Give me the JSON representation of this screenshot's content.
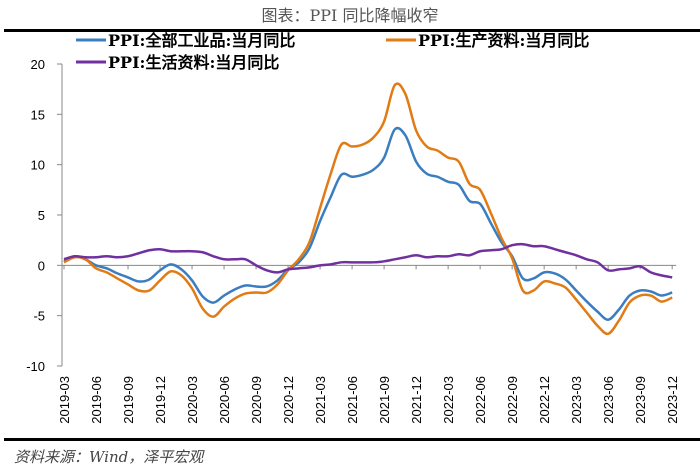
{
  "title": "图表：PPI 同比降幅收窄",
  "source": "资料来源：Wind，泽平宏观",
  "chart_data": {
    "type": "line",
    "title": "图表：PPI 同比降幅收窄",
    "ylim": [
      -10,
      20
    ],
    "yticks": [
      20,
      15,
      10,
      5,
      0,
      -5,
      -10
    ],
    "x_start": "2019-03",
    "xticks": [
      "2019-03",
      "2019-06",
      "2019-09",
      "2019-12",
      "2020-03",
      "2020-06",
      "2020-09",
      "2020-12",
      "2021-03",
      "2021-06",
      "2021-09",
      "2021-12",
      "2022-03",
      "2022-06",
      "2022-09",
      "2022-12",
      "2023-03",
      "2023-06",
      "2023-09",
      "2023-12"
    ],
    "grid": false,
    "legend_position": "top",
    "series": [
      {
        "name": "PPI:全部工业品:当月同比",
        "color": "#3A7DC0",
        "values": [
          0.4,
          0.9,
          0.6,
          0.0,
          -0.3,
          -0.8,
          -1.2,
          -1.6,
          -1.4,
          -0.5,
          0.1,
          -0.4,
          -1.5,
          -3.1,
          -3.7,
          -3.0,
          -2.4,
          -2.0,
          -2.1,
          -2.1,
          -1.5,
          -0.4,
          0.3,
          1.7,
          4.4,
          6.8,
          9.0,
          8.8,
          9.0,
          9.5,
          10.7,
          13.5,
          12.9,
          10.3,
          9.1,
          8.8,
          8.3,
          8.0,
          6.4,
          6.1,
          4.2,
          2.3,
          0.9,
          -1.3,
          -1.3,
          -0.7,
          -0.8,
          -1.4,
          -2.5,
          -3.6,
          -4.6,
          -5.4,
          -4.4,
          -3.0,
          -2.5,
          -2.6,
          -3.0,
          -2.7
        ]
      },
      {
        "name": "PPI:生产资料:当月同比",
        "color": "#E07B15",
        "values": [
          0.3,
          0.8,
          0.6,
          -0.3,
          -0.7,
          -1.3,
          -1.9,
          -2.5,
          -2.5,
          -1.5,
          -0.6,
          -1.0,
          -2.3,
          -4.3,
          -5.1,
          -4.1,
          -3.3,
          -2.8,
          -2.7,
          -2.7,
          -1.9,
          -0.5,
          0.6,
          2.3,
          5.7,
          9.1,
          12.0,
          11.8,
          12.0,
          12.7,
          14.3,
          17.9,
          17.0,
          13.4,
          11.8,
          11.4,
          10.7,
          10.3,
          8.1,
          7.5,
          5.2,
          2.7,
          0.7,
          -2.5,
          -2.5,
          -1.6,
          -1.8,
          -2.2,
          -3.4,
          -4.7,
          -6.0,
          -6.8,
          -5.5,
          -3.7,
          -3.0,
          -3.0,
          -3.6,
          -3.2
        ]
      },
      {
        "name": "PPI:生活资料:当月同比",
        "color": "#7030A0",
        "values": [
          0.6,
          0.9,
          0.8,
          0.8,
          0.9,
          0.8,
          0.9,
          1.2,
          1.5,
          1.6,
          1.4,
          1.4,
          1.4,
          1.3,
          0.9,
          0.6,
          0.6,
          0.6,
          0.0,
          -0.5,
          -0.7,
          -0.4,
          -0.3,
          -0.2,
          0.0,
          0.1,
          0.3,
          0.3,
          0.3,
          0.3,
          0.4,
          0.6,
          0.8,
          1.0,
          0.8,
          0.9,
          0.9,
          1.1,
          1.0,
          1.4,
          1.5,
          1.6,
          2.0,
          2.1,
          1.9,
          1.9,
          1.6,
          1.3,
          1.0,
          0.6,
          0.3,
          -0.5,
          -0.4,
          -0.3,
          -0.1,
          -0.7,
          -1.0,
          -1.2
        ]
      }
    ]
  }
}
